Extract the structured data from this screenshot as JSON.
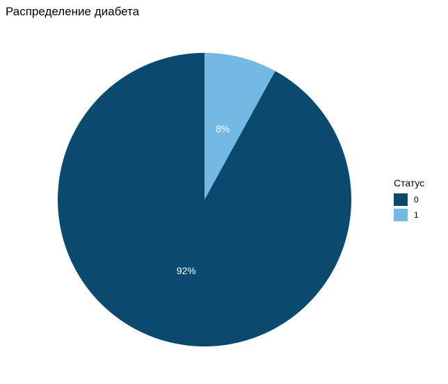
{
  "chart_data": {
    "type": "pie",
    "title": "Распределение диабета",
    "categories": [
      "0",
      "1"
    ],
    "values": [
      92,
      8
    ],
    "slice_labels": [
      "92%",
      "8%"
    ],
    "colors": [
      "#0a4a6e",
      "#74b9e3"
    ],
    "legend": {
      "title": "Статус",
      "placement": "right",
      "items": [
        {
          "label": "0",
          "color": "#0a4a6e"
        },
        {
          "label": "1",
          "color": "#74b9e3"
        }
      ]
    }
  }
}
